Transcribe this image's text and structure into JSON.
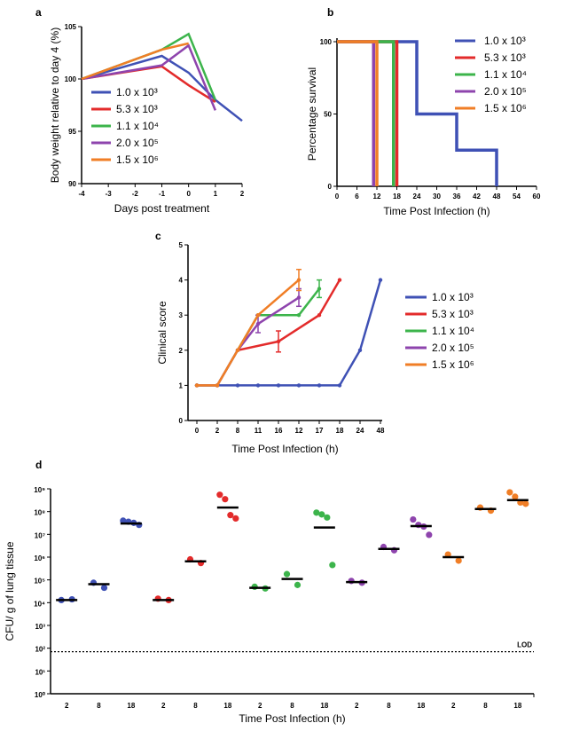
{
  "panels": [
    {
      "id": "a",
      "type": "line",
      "xlabel": "Days post treatment",
      "ylabel": "Body weight relative to day 4 (%)",
      "xlim": [
        -4,
        2
      ],
      "ylim": [
        90,
        105
      ],
      "xticks": [
        -4,
        -3,
        -2,
        -1,
        0,
        1,
        2
      ],
      "yticks": [
        90,
        95,
        100,
        105
      ],
      "legend_position": "bottom-left",
      "series": [
        {
          "name": "1.0 x 10³",
          "color": "#3f51b5",
          "points": [
            [
              -4,
              100
            ],
            [
              -1,
              102.2
            ],
            [
              0,
              100.6
            ],
            [
              1,
              98.0
            ],
            [
              2,
              96.0
            ]
          ]
        },
        {
          "name": "5.3 x 10³",
          "color": "#e32b2b",
          "points": [
            [
              -4,
              100
            ],
            [
              -1,
              101.2
            ],
            [
              0,
              99.4
            ],
            [
              1,
              97.8
            ]
          ]
        },
        {
          "name": "1.1 x 10⁴",
          "color": "#3cb44b",
          "points": [
            [
              -4,
              100
            ],
            [
              -1,
              102.8
            ],
            [
              0,
              104.3
            ],
            [
              1,
              98.0
            ]
          ]
        },
        {
          "name": "2.0 x 10⁵",
          "color": "#8e44ad",
          "points": [
            [
              -4,
              100
            ],
            [
              -1,
              101.3
            ],
            [
              0,
              103.2
            ],
            [
              1,
              97.0
            ]
          ]
        },
        {
          "name": "1.5 x 10⁶",
          "color": "#f07e26",
          "points": [
            [
              -4,
              100
            ],
            [
              -1,
              102.8
            ],
            [
              0,
              103.4
            ]
          ]
        }
      ]
    },
    {
      "id": "b",
      "type": "line",
      "xlabel": "Time Post Infection (h)",
      "ylabel": "Percentage survival",
      "xlim": [
        0,
        60
      ],
      "ylim": [
        0,
        100
      ],
      "xticks": [
        0,
        6,
        12,
        18,
        24,
        30,
        36,
        42,
        48,
        54,
        60
      ],
      "yticks": [
        0,
        50,
        100
      ],
      "legend_position": "top-right",
      "series": [
        {
          "name": "1.0 x 10³",
          "color": "#3f51b5",
          "points": [
            [
              0,
              100
            ],
            [
              24,
              100
            ],
            [
              24,
              50
            ],
            [
              36,
              50
            ],
            [
              36,
              25
            ],
            [
              48,
              25
            ],
            [
              48,
              0
            ]
          ]
        },
        {
          "name": "5.3 x 10³",
          "color": "#e32b2b",
          "points": [
            [
              0,
              100
            ],
            [
              18,
              100
            ],
            [
              18,
              0
            ]
          ]
        },
        {
          "name": "1.1 x 10⁴",
          "color": "#3cb44b",
          "points": [
            [
              0,
              100
            ],
            [
              17,
              100
            ],
            [
              17,
              0
            ]
          ]
        },
        {
          "name": "2.0 x 10⁵",
          "color": "#8e44ad",
          "points": [
            [
              0,
              100
            ],
            [
              11,
              100
            ],
            [
              11,
              0
            ]
          ]
        },
        {
          "name": "1.5 x 10⁶",
          "color": "#f07e26",
          "points": [
            [
              0,
              100
            ],
            [
              12,
              100
            ],
            [
              12,
              0
            ]
          ]
        }
      ]
    },
    {
      "id": "c",
      "type": "line",
      "xlabel": "Time Post Infection (h)",
      "ylabel": "Clinical score",
      "categories": [
        "0",
        "2",
        "8",
        "11",
        "16",
        "12",
        "17",
        "18",
        "24",
        "48"
      ],
      "ylim": [
        0,
        5
      ],
      "yticks": [
        0,
        1,
        2,
        3,
        4,
        5
      ],
      "legend_position": "right",
      "series": [
        {
          "name": "1.0 x 10³",
          "color": "#3f51b5",
          "points": [
            [
              0,
              1
            ],
            [
              1,
              1
            ],
            [
              2,
              1
            ],
            [
              3,
              1
            ],
            [
              4,
              1
            ],
            [
              5,
              1
            ],
            [
              6,
              1
            ],
            [
              7,
              1
            ],
            [
              8,
              2
            ],
            [
              9,
              4
            ]
          ]
        },
        {
          "name": "5.3 x 10³",
          "color": "#e32b2b",
          "points": [
            [
              0,
              1
            ],
            [
              1,
              1
            ],
            [
              2,
              2
            ],
            [
              4,
              2.25
            ],
            [
              6,
              3
            ],
            [
              7,
              4
            ]
          ],
          "errors": [
            [
              4,
              0.3
            ]
          ]
        },
        {
          "name": "1.1 x 10⁴",
          "color": "#3cb44b",
          "points": [
            [
              0,
              1
            ],
            [
              1,
              1
            ],
            [
              2,
              2
            ],
            [
              3,
              3
            ],
            [
              5,
              3
            ],
            [
              6,
              3.75
            ]
          ],
          "errors": [
            [
              6,
              0.25
            ]
          ]
        },
        {
          "name": "2.0 x 10⁵",
          "color": "#8e44ad",
          "points": [
            [
              0,
              1
            ],
            [
              1,
              1
            ],
            [
              2,
              2
            ],
            [
              3,
              2.75
            ],
            [
              5,
              3.5
            ]
          ],
          "errors": [
            [
              3,
              0.25
            ],
            [
              5,
              0.25
            ]
          ]
        },
        {
          "name": "1.5 x 10⁶",
          "color": "#f07e26",
          "points": [
            [
              0,
              1
            ],
            [
              1,
              1
            ],
            [
              2,
              2
            ],
            [
              3,
              3
            ],
            [
              5,
              4
            ]
          ],
          "errors": [
            [
              5,
              0.3
            ]
          ]
        }
      ]
    },
    {
      "id": "d",
      "type": "scatter",
      "xlabel": "Time Post Infection (h)",
      "ylabel": "CFU/ g of lung tissue",
      "yscale": "log",
      "ylim_exp": [
        0,
        9
      ],
      "yticks": [
        "10⁰",
        "10¹",
        "10²",
        "10³",
        "10⁴",
        "10⁵",
        "10⁶",
        "10⁷",
        "10⁸",
        "10⁹"
      ],
      "categories": [
        "2",
        "8",
        "18",
        "2",
        "8",
        "18",
        "2",
        "8",
        "18",
        "2",
        "8",
        "18",
        "2",
        "8",
        "18"
      ],
      "lod_label": "LOD",
      "lod_value": 70,
      "groups": [
        {
          "color": "#3f51b5",
          "mean": 13000.0,
          "points": [
            13000.0,
            14000.0
          ]
        },
        {
          "color": "#3f51b5",
          "mean": 65000.0,
          "points": [
            75000.0,
            45000.0
          ]
        },
        {
          "color": "#3f51b5",
          "mean": 30000000.0,
          "points": [
            40000000.0,
            36000000.0,
            32000000.0,
            26000000.0
          ]
        },
        {
          "color": "#e32b2b",
          "mean": 13000.0,
          "points": [
            15000.0,
            13000.0
          ]
        },
        {
          "color": "#e32b2b",
          "mean": 650000.0,
          "points": [
            800000.0,
            550000.0
          ]
        },
        {
          "color": "#e32b2b",
          "mean": 150000000.0,
          "points": [
            550000000.0,
            350000000.0,
            70000000.0,
            50000000.0
          ]
        },
        {
          "color": "#3cb44b",
          "mean": 45000.0,
          "points": [
            50000.0,
            42000.0
          ]
        },
        {
          "color": "#3cb44b",
          "mean": 110000.0,
          "points": [
            180000.0,
            60000.0
          ]
        },
        {
          "color": "#3cb44b",
          "mean": 20000000.0,
          "points": [
            90000000.0,
            75000000.0,
            55000000.0,
            450000.0
          ]
        },
        {
          "color": "#8e44ad",
          "mean": 80000.0,
          "points": [
            90000.0,
            75000.0
          ]
        },
        {
          "color": "#8e44ad",
          "mean": 2300000.0,
          "points": [
            2800000.0,
            2000000.0
          ]
        },
        {
          "color": "#8e44ad",
          "mean": 23000000.0,
          "points": [
            45000000.0,
            26000000.0,
            22000000.0,
            9500000.0
          ]
        },
        {
          "color": "#f07e26",
          "mean": 1000000.0,
          "points": [
            1300000.0,
            700000.0
          ]
        },
        {
          "color": "#f07e26",
          "mean": 130000000.0,
          "points": [
            150000000.0,
            110000000.0
          ]
        },
        {
          "color": "#f07e26",
          "mean": 320000000.0,
          "points": [
            700000000.0,
            450000000.0,
            250000000.0,
            220000000.0
          ]
        }
      ]
    }
  ],
  "legend_entries": [
    "1.0 x 10³",
    "5.3 x 10³",
    "1.1 x 10⁴",
    "2.0 x 10⁵",
    "1.5 x 10⁶"
  ],
  "legend_colors": [
    "#3f51b5",
    "#e32b2b",
    "#3cb44b",
    "#8e44ad",
    "#f07e26"
  ]
}
